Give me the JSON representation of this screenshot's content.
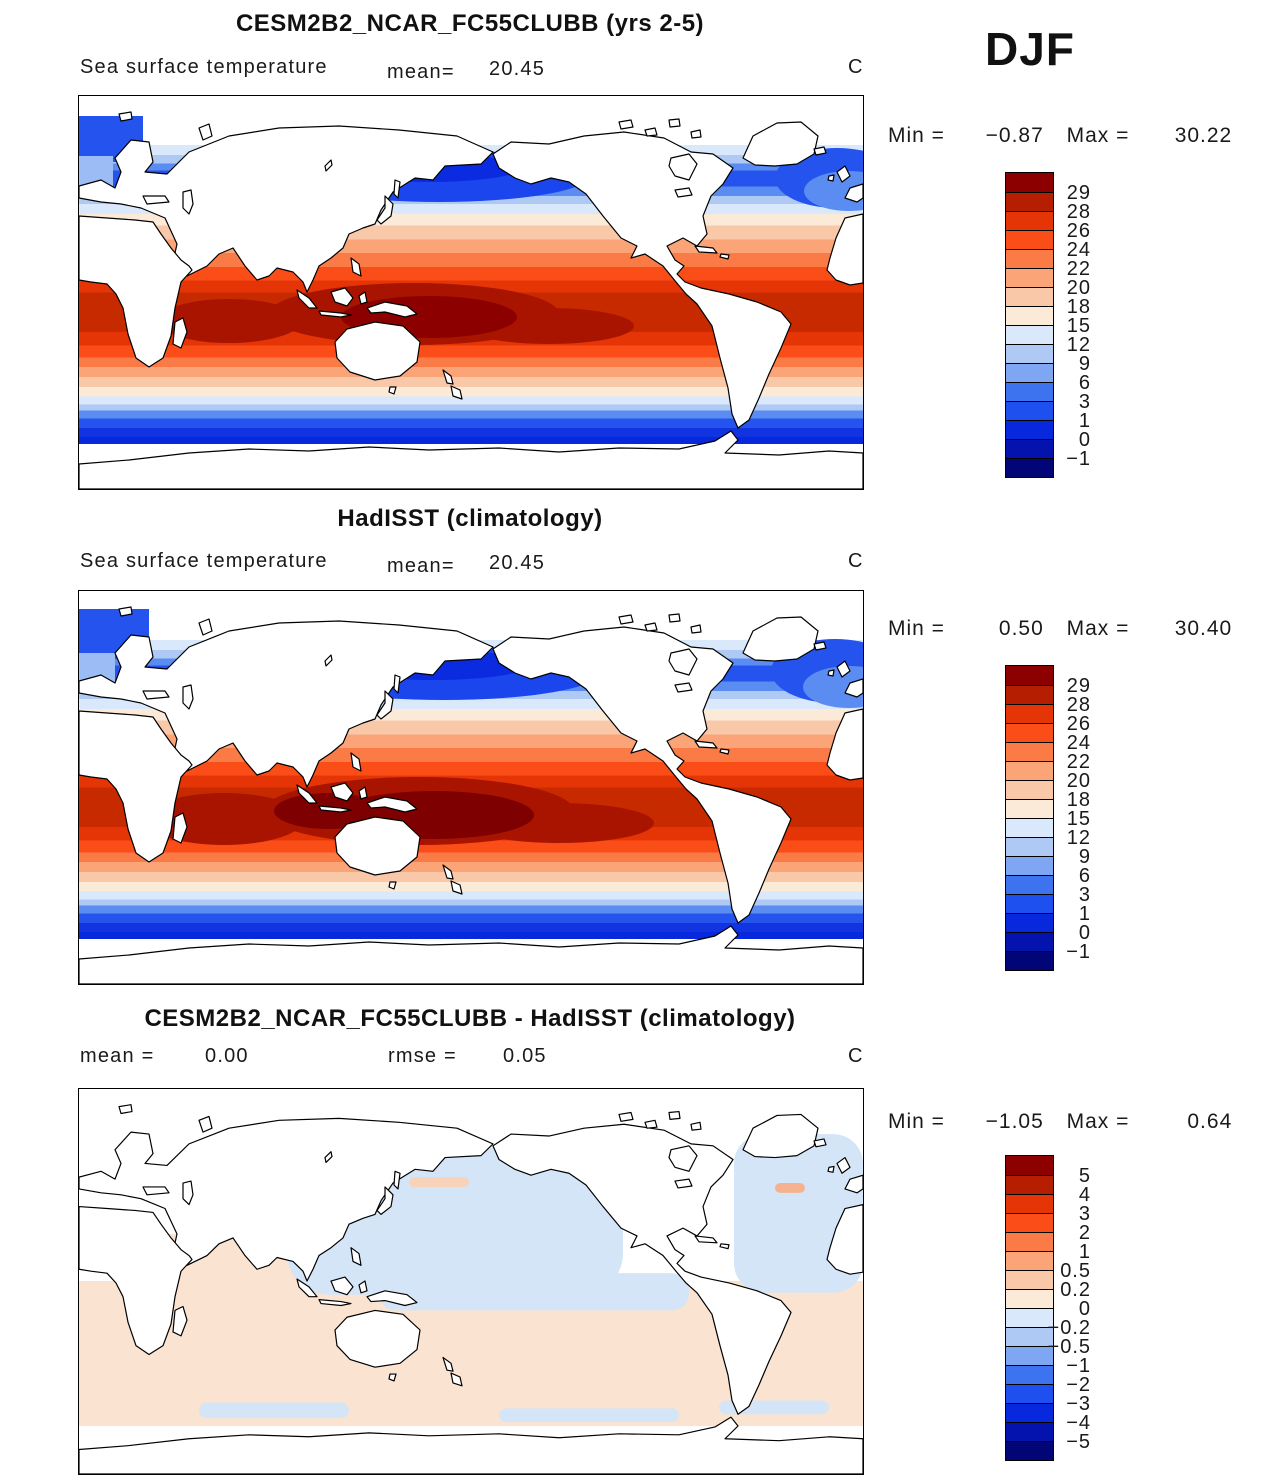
{
  "season_label": "DJF",
  "panels": [
    {
      "title": "CESM2B2_NCAR_FC55CLUBB (yrs 2-5)",
      "subtitle_left": "Sea surface temperature",
      "mean_label": "mean=",
      "mean_value": "20.45",
      "unit_label": "C",
      "min_label": "Min =",
      "min_value": "−0.87",
      "max_label": "Max =",
      "max_value": "30.22",
      "colorbar": {
        "tick_labels": [
          "29",
          "28",
          "26",
          "24",
          "22",
          "20",
          "18",
          "15",
          "12",
          "9",
          "6",
          "3",
          "1",
          "0",
          "−1"
        ],
        "colors": [
          "#8D0000",
          "#B51E00",
          "#E53506",
          "#FB4D18",
          "#FB7B47",
          "#FBA477",
          "#F8C8A8",
          "#FBEAD7",
          "#D9E8FA",
          "#AFC9F5",
          "#7FA6F2",
          "#3E73F0",
          "#1E50F0",
          "#0728DC",
          "#0413AE",
          "#010575"
        ]
      }
    },
    {
      "title": "HadISST (climatology)",
      "subtitle_left": "Sea surface temperature",
      "mean_label": "mean=",
      "mean_value": "20.45",
      "unit_label": "C",
      "min_label": "Min =",
      "min_value": "0.50",
      "max_label": "Max =",
      "max_value": "30.40",
      "colorbar": {
        "tick_labels": [
          "29",
          "28",
          "26",
          "24",
          "22",
          "20",
          "18",
          "15",
          "12",
          "9",
          "6",
          "3",
          "1",
          "0",
          "−1"
        ],
        "colors": [
          "#8D0000",
          "#B51E00",
          "#E53506",
          "#FB4D18",
          "#FB7B47",
          "#FBA477",
          "#F8C8A8",
          "#FBEAD7",
          "#D9E8FA",
          "#AFC9F5",
          "#7FA6F2",
          "#3E73F0",
          "#1E50F0",
          "#0728DC",
          "#0413AE",
          "#010575"
        ]
      }
    },
    {
      "title": "CESM2B2_NCAR_FC55CLUBB - HadISST (climatology)",
      "mean_label": "mean =",
      "mean_value": "0.00",
      "rmse_label": "rmse =",
      "rmse_value": "0.05",
      "unit_label": "C",
      "min_label": "Min =",
      "min_value": "−1.05",
      "max_label": "Max =",
      "max_value": "0.64",
      "colorbar": {
        "tick_labels": [
          "5",
          "4",
          "3",
          "2",
          "1",
          "0.5",
          "0.2",
          "0",
          "−0.2",
          "−0.5",
          "−1",
          "−2",
          "−3",
          "−4",
          "−5"
        ],
        "colors": [
          "#8D0000",
          "#B51E00",
          "#E53506",
          "#FB4D18",
          "#FB7B47",
          "#FBA477",
          "#F8C8A8",
          "#FBEAD7",
          "#D9E8FA",
          "#AFC9F5",
          "#7FA6F2",
          "#3E73F0",
          "#1E50F0",
          "#0728DC",
          "#0413AE",
          "#010575"
        ]
      }
    }
  ],
  "chart_data": [
    {
      "type": "heatmap",
      "title": "CESM2B2_NCAR_FC55CLUBB (yrs 2-5)",
      "variable": "Sea surface temperature",
      "season": "DJF",
      "units": "C",
      "mean": 20.45,
      "min": -0.87,
      "max": 30.22,
      "contour_levels": [
        -1,
        0,
        1,
        3,
        6,
        9,
        12,
        15,
        18,
        20,
        22,
        24,
        26,
        28,
        29
      ],
      "palette_low_to_high": [
        "#010575",
        "#0413AE",
        "#0728DC",
        "#1E50F0",
        "#3E73F0",
        "#7FA6F2",
        "#AFC9F5",
        "#D9E8FA",
        "#FBEAD7",
        "#F8C8A8",
        "#FBA477",
        "#FB7B47",
        "#FB4D18",
        "#E53506",
        "#B51E00",
        "#8D0000"
      ],
      "legend_position": "right",
      "map": "global Pacific-centered, land masked white, warm pool maximum in western tropical Pacific, coldest water in N Pacific and Southern Ocean"
    },
    {
      "type": "heatmap",
      "title": "HadISST (climatology)",
      "variable": "Sea surface temperature",
      "season": "DJF",
      "units": "C",
      "mean": 20.45,
      "min": 0.5,
      "max": 30.4,
      "contour_levels": [
        -1,
        0,
        1,
        3,
        6,
        9,
        12,
        15,
        18,
        20,
        22,
        24,
        26,
        28,
        29
      ],
      "palette_low_to_high": [
        "#010575",
        "#0413AE",
        "#0728DC",
        "#1E50F0",
        "#3E73F0",
        "#7FA6F2",
        "#AFC9F5",
        "#D9E8FA",
        "#FBEAD7",
        "#F8C8A8",
        "#FBA477",
        "#FB7B47",
        "#FB4D18",
        "#E53506",
        "#B51E00",
        "#8D0000"
      ],
      "legend_position": "right",
      "map": "global Pacific-centered observed SST climatology, same pattern as model panel"
    },
    {
      "type": "heatmap",
      "title": "CESM2B2_NCAR_FC55CLUBB - HadISST (climatology)",
      "variable": "Sea surface temperature difference",
      "season": "DJF",
      "units": "C",
      "mean": 0.0,
      "rmse": 0.05,
      "min": -1.05,
      "max": 0.64,
      "contour_levels": [
        -5,
        -4,
        -3,
        -2,
        -1,
        -0.5,
        -0.2,
        0,
        0.2,
        0.5,
        1,
        2,
        3,
        4,
        5
      ],
      "palette_low_to_high": [
        "#010575",
        "#0413AE",
        "#0728DC",
        "#1E50F0",
        "#3E73F0",
        "#7FA6F2",
        "#AFC9F5",
        "#D9E8FA",
        "#FBEAD7",
        "#F8C8A8",
        "#FBA477",
        "#FB7B47",
        "#FB4D18",
        "#E53506",
        "#B51E00",
        "#8D0000"
      ],
      "legend_position": "right",
      "map": "difference map: weak negative (pale blue, 0 to -0.2) over N Pacific, N Atlantic and equatorial Pacific; weak positive (pale orange, 0 to 0.2) over southern oceans and Indian Ocean"
    }
  ]
}
